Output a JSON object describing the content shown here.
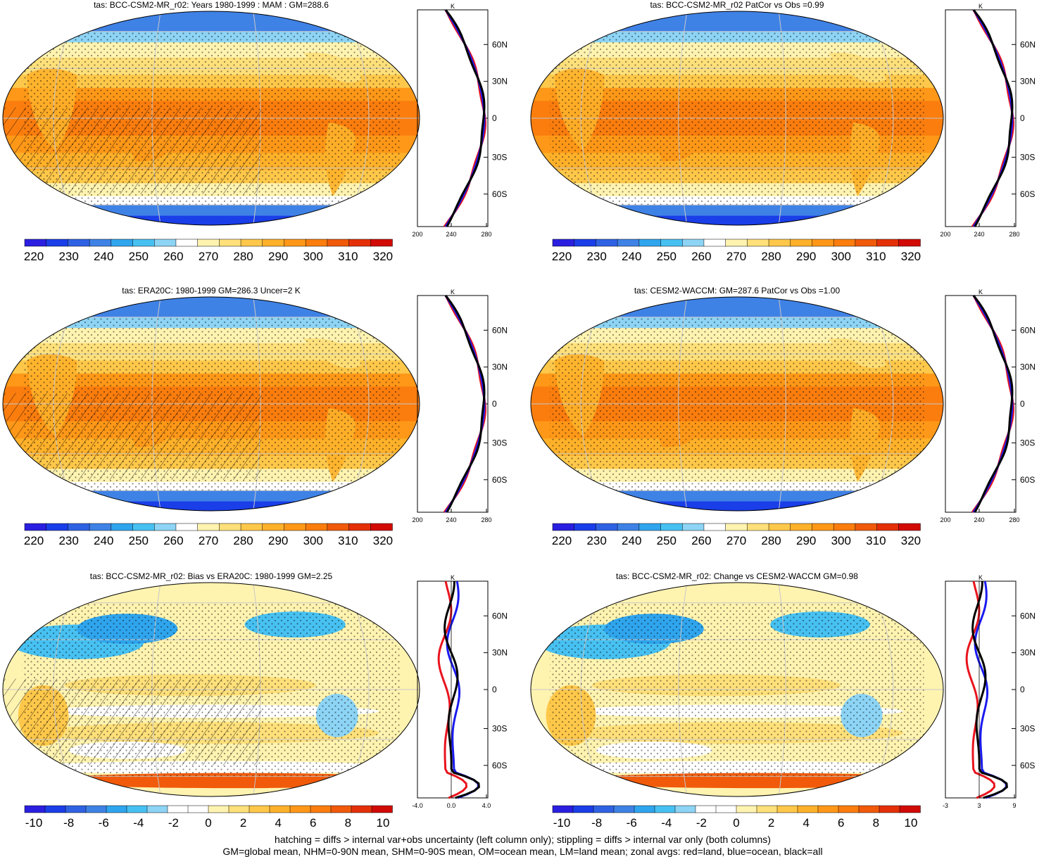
{
  "panels": [
    {
      "title": "tas: BCC-CSM2-MR_r02: Years 1980-1999 : MAM : GM=288.6",
      "map": {
        "palette": "abs",
        "hatch": true,
        "stipple": true
      },
      "colorbar": {
        "labels": [
          "220",
          "230",
          "240",
          "250",
          "260",
          "270",
          "280",
          "290",
          "300",
          "310",
          "320"
        ]
      },
      "zonal": {
        "xticks": [
          "200",
          "240",
          "280"
        ],
        "unit": "K",
        "lat_labels": [
          "60N",
          "30N",
          "0",
          "30S",
          "60S"
        ]
      }
    },
    {
      "title": "tas: BCC-CSM2-MR_r02 PatCor vs Obs =0.99",
      "map": {
        "palette": "abs",
        "hatch": false,
        "stipple": true
      },
      "colorbar": {
        "labels": [
          "220",
          "230",
          "240",
          "250",
          "260",
          "270",
          "280",
          "290",
          "300",
          "310",
          "320"
        ]
      },
      "zonal": {
        "xticks": [
          "200",
          "240",
          "280"
        ],
        "unit": "K",
        "lat_labels": [
          "60N",
          "30N",
          "0",
          "30S",
          "60S"
        ]
      }
    },
    {
      "title": "tas: ERA20C: 1980-1999 GM=286.3 Uncer=2 K",
      "map": {
        "palette": "abs",
        "hatch": true,
        "stipple": true
      },
      "colorbar": {
        "labels": [
          "220",
          "230",
          "240",
          "250",
          "260",
          "270",
          "280",
          "290",
          "300",
          "310",
          "320"
        ]
      },
      "zonal": {
        "xticks": [
          "200",
          "240",
          "280"
        ],
        "unit": "K",
        "lat_labels": [
          "60N",
          "30N",
          "0",
          "30S",
          "60S"
        ]
      }
    },
    {
      "title": "tas: CESM2-WACCM: GM=287.6 PatCor vs Obs =1.00",
      "map": {
        "palette": "abs",
        "hatch": false,
        "stipple": true
      },
      "colorbar": {
        "labels": [
          "220",
          "230",
          "240",
          "250",
          "260",
          "270",
          "280",
          "290",
          "300",
          "310",
          "320"
        ]
      },
      "zonal": {
        "xticks": [
          "200",
          "240",
          "280"
        ],
        "unit": "K",
        "lat_labels": [
          "60N",
          "30N",
          "0",
          "30S",
          "60S"
        ]
      }
    },
    {
      "title": "tas: BCC-CSM2-MR_r02: Bias vs ERA20C: 1980-1999 GM=2.25",
      "map": {
        "palette": "diff",
        "hatch": true,
        "stipple": true
      },
      "colorbar": {
        "labels": [
          "-10",
          "-8",
          "-6",
          "-4",
          "-2",
          "0",
          "2",
          "4",
          "6",
          "8",
          "10"
        ]
      },
      "zonal": {
        "xticks": [
          "-4.0",
          "0.0",
          "4.0"
        ],
        "unit": "K",
        "lat_labels": [
          "60N",
          "30N",
          "0",
          "30S",
          "60S"
        ]
      }
    },
    {
      "title": "tas: BCC-CSM2-MR_r02: Change vs CESM2-WACCM GM=0.98",
      "map": {
        "palette": "diff",
        "hatch": false,
        "stipple": true
      },
      "colorbar": {
        "labels": [
          "-10",
          "-8",
          "-6",
          "-4",
          "-2",
          "0",
          "2",
          "4",
          "6",
          "8",
          "10"
        ]
      },
      "zonal": {
        "xticks": [
          "-3",
          "3",
          "9"
        ],
        "unit": "K",
        "lat_labels": [
          "60N",
          "30N",
          "0",
          "30S",
          "60S"
        ]
      }
    }
  ],
  "footer": {
    "line1": "hatching = diffs > internal var+obs uncertainty (left column only); stippling = diffs > internal var only (both columns)",
    "line2": "GM=global mean, NHM=0-90N mean, SHM=0-90S mean, OM=ocean mean, LM=land mean; zonal avgs: red=land, blue=ocean, black=all"
  },
  "colors": {
    "abs_palette": [
      "#2a1fe0",
      "#1a3ee8",
      "#2f62e3",
      "#3f82e6",
      "#2fa5ee",
      "#47c1f2",
      "#8dd4f5",
      "#ffffff",
      "#fff3b0",
      "#ffe07a",
      "#ffc84a",
      "#ffb12a",
      "#ff9818",
      "#fa7d0e",
      "#f05a0a",
      "#e43008",
      "#d20a06"
    ],
    "diff_palette": [
      "#2a1fe0",
      "#1a3ee8",
      "#2f62e3",
      "#3f82e6",
      "#2fa5ee",
      "#47c1f2",
      "#8dd4f5",
      "#ffffff",
      "#ffffff",
      "#fff3b0",
      "#ffe07a",
      "#ffc84a",
      "#ffb12a",
      "#ff9818",
      "#fa7d0e",
      "#f05a0a",
      "#e43008",
      "#d20a06"
    ],
    "land_line": "#e8141e",
    "ocean_line": "#1a1aee",
    "all_line": "#000000"
  }
}
